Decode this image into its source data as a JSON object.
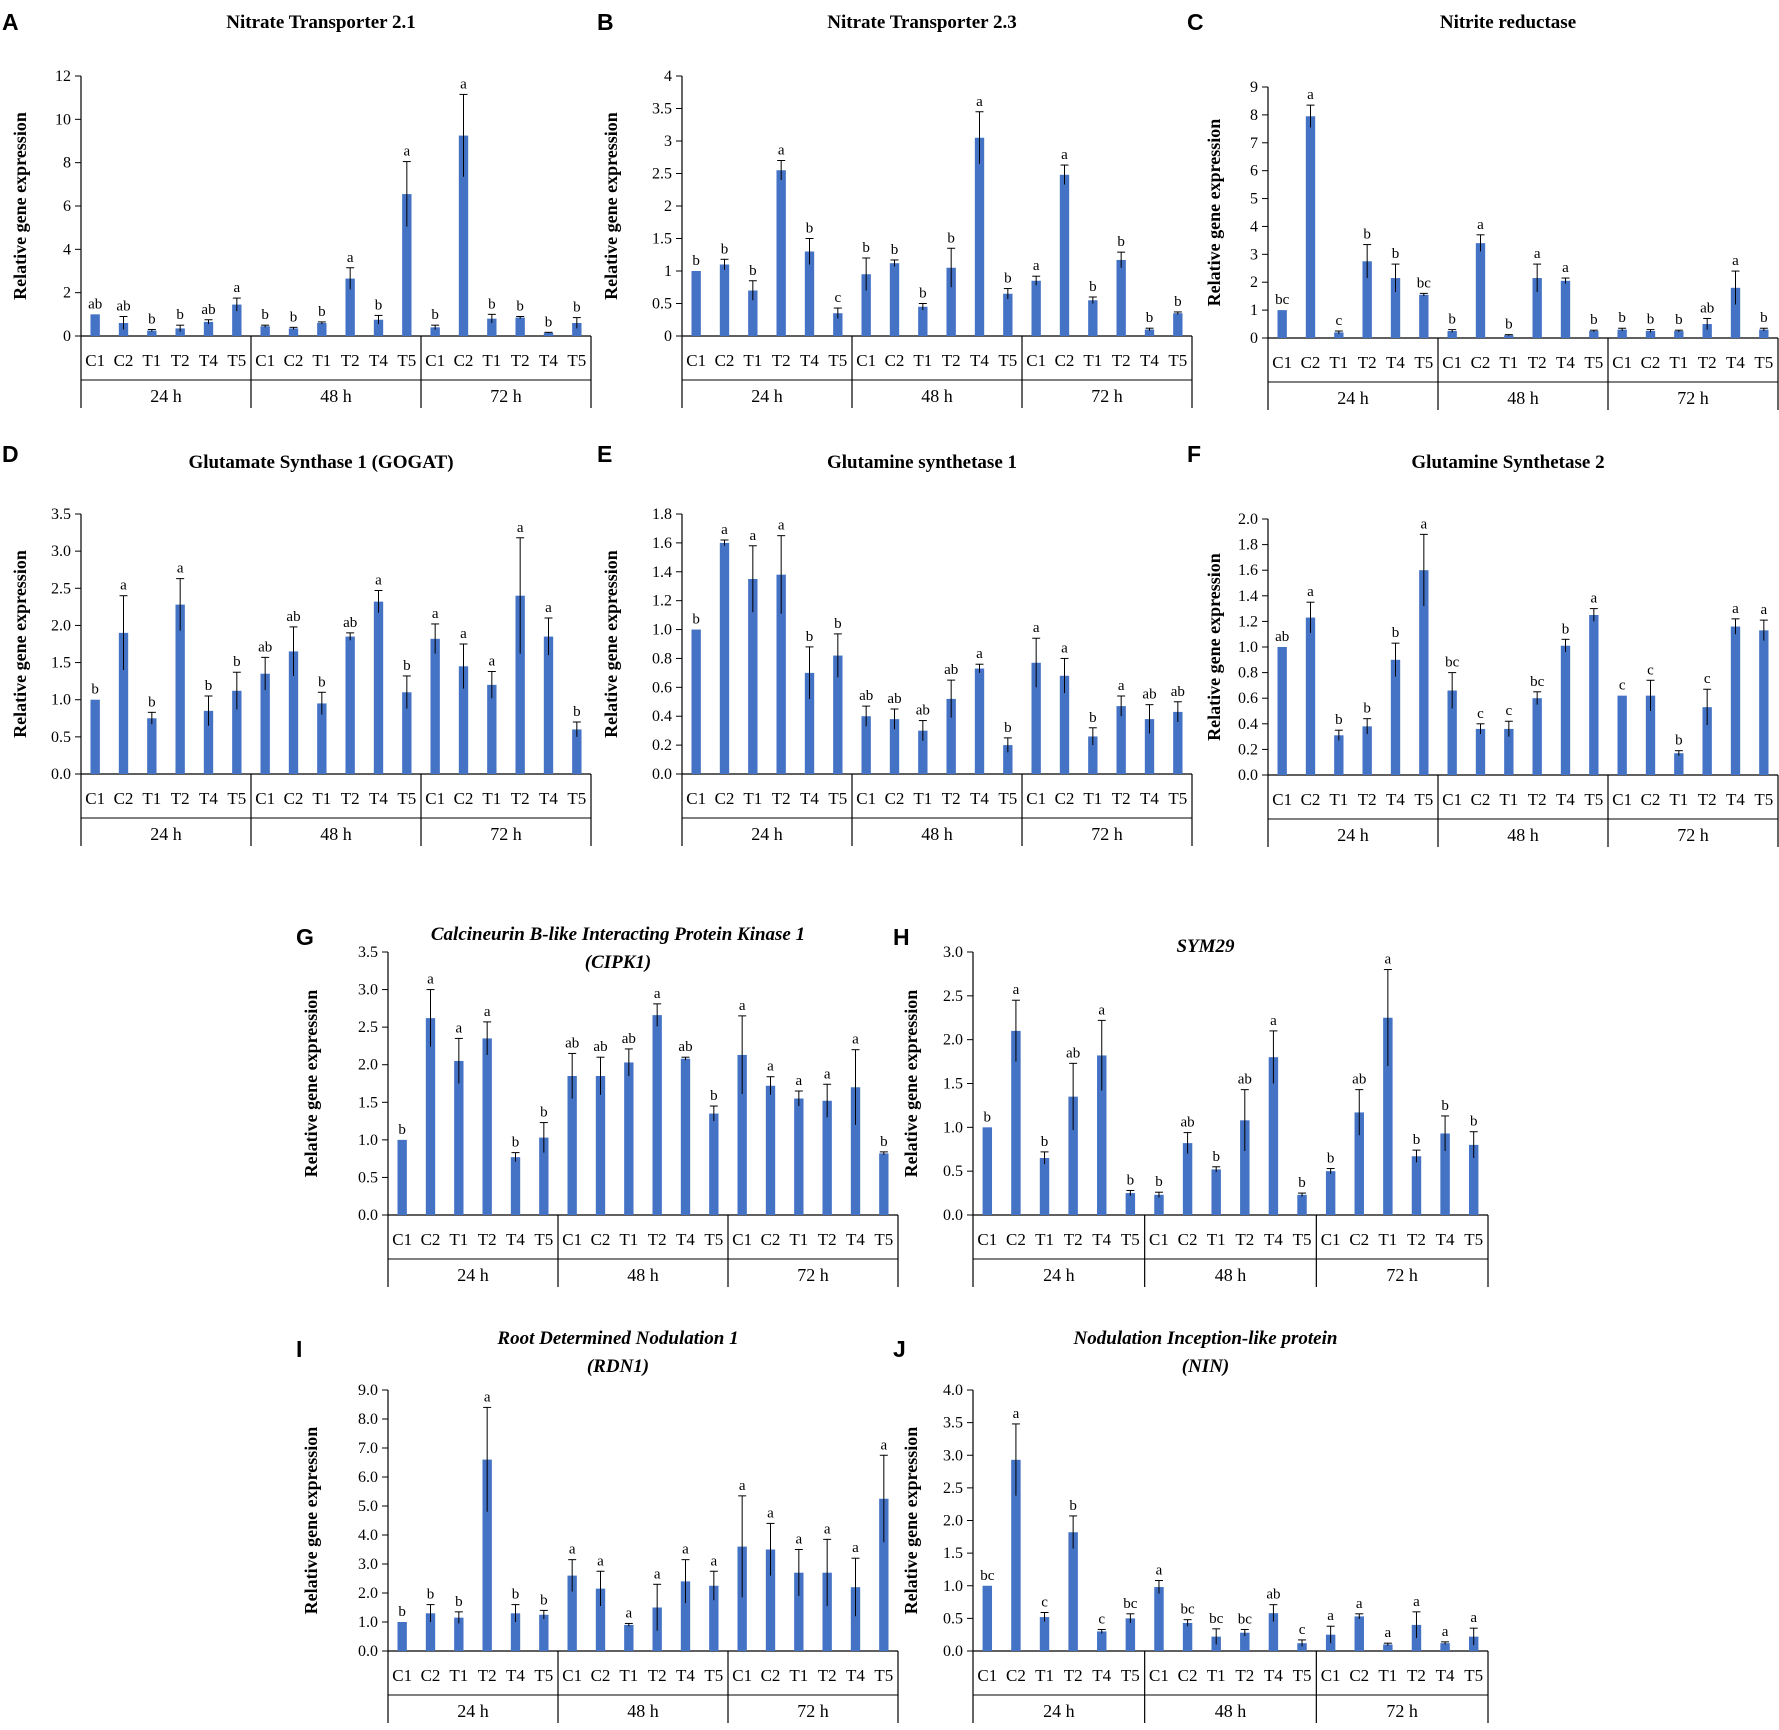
{
  "colors": {
    "bar": "#4472C4",
    "axis": "#000000"
  },
  "chart_data": [
    {
      "panel": "A",
      "type": "bar",
      "title": "Nitrate Transporter 2.1",
      "title_italic": false,
      "ylabel": "Relative gene expression",
      "ylim": [
        0,
        12
      ],
      "yticks": [
        "0",
        "2",
        "4",
        "6",
        "8",
        "10",
        "12"
      ],
      "groups": [
        "24 h",
        "48 h",
        "72 h"
      ],
      "categories": [
        "C1",
        "C2",
        "T1",
        "T2",
        "T4",
        "T5",
        "C1",
        "C2",
        "T1",
        "T2",
        "T4",
        "T5",
        "C1",
        "C2",
        "T1",
        "T2",
        "T4",
        "T5"
      ],
      "values": [
        1.0,
        0.6,
        0.25,
        0.35,
        0.65,
        1.45,
        0.45,
        0.35,
        0.6,
        2.65,
        0.75,
        6.55,
        0.4,
        9.25,
        0.8,
        0.85,
        0.15,
        0.6
      ],
      "errors": [
        0.0,
        0.3,
        0.05,
        0.15,
        0.1,
        0.3,
        0.05,
        0.05,
        0.05,
        0.5,
        0.2,
        1.5,
        0.1,
        1.9,
        0.2,
        0.05,
        0.02,
        0.25
      ],
      "labels": [
        "ab",
        "ab",
        "b",
        "b",
        "ab",
        "a",
        "b",
        "b",
        "b",
        "a",
        "b",
        "a",
        "b",
        "a",
        "b",
        "b",
        "b",
        "b"
      ]
    },
    {
      "panel": "B",
      "type": "bar",
      "title": "Nitrate Transporter 2.3",
      "title_italic": false,
      "ylabel": "Relative gene expression",
      "ylim": [
        0,
        4
      ],
      "yticks": [
        "0",
        "0.5",
        "1",
        "1.5",
        "2",
        "2.5",
        "3",
        "3.5",
        "4"
      ],
      "groups": [
        "24 h",
        "48 h",
        "72 h"
      ],
      "categories": [
        "C1",
        "C2",
        "T1",
        "T2",
        "T4",
        "T5",
        "C1",
        "C2",
        "T1",
        "T2",
        "T4",
        "T5",
        "C1",
        "C2",
        "T1",
        "T2",
        "T4",
        "T5"
      ],
      "values": [
        1.0,
        1.1,
        0.7,
        2.55,
        1.3,
        0.35,
        0.95,
        1.12,
        0.45,
        1.05,
        3.05,
        0.65,
        0.85,
        2.48,
        0.55,
        1.17,
        0.1,
        0.35
      ],
      "errors": [
        0.0,
        0.08,
        0.15,
        0.15,
        0.2,
        0.08,
        0.25,
        0.05,
        0.05,
        0.3,
        0.4,
        0.08,
        0.07,
        0.15,
        0.05,
        0.12,
        0.02,
        0.02
      ],
      "labels": [
        "b",
        "b",
        "b",
        "a",
        "b",
        "c",
        "b",
        "b",
        "b",
        "b",
        "a",
        "b",
        "a",
        "a",
        "b",
        "b",
        "b",
        "b"
      ]
    },
    {
      "panel": "C",
      "type": "bar",
      "title": "Nitrite reductase",
      "title_italic": false,
      "ylabel": "Relative gene expression",
      "ylim": [
        0,
        9
      ],
      "yticks": [
        "0",
        "1",
        "2",
        "3",
        "4",
        "5",
        "6",
        "7",
        "8",
        "9"
      ],
      "groups": [
        "24 h",
        "48 h",
        "72 h"
      ],
      "categories": [
        "C1",
        "C2",
        "T1",
        "T2",
        "T4",
        "T5",
        "C1",
        "C2",
        "T1",
        "T2",
        "T4",
        "T5",
        "C1",
        "C2",
        "T1",
        "T2",
        "T4",
        "T5"
      ],
      "values": [
        1.0,
        7.95,
        0.2,
        2.75,
        2.15,
        1.55,
        0.25,
        3.4,
        0.1,
        2.15,
        2.05,
        0.25,
        0.3,
        0.25,
        0.25,
        0.5,
        1.8,
        0.3
      ],
      "errors": [
        0.0,
        0.4,
        0.05,
        0.6,
        0.5,
        0.05,
        0.05,
        0.3,
        0.02,
        0.5,
        0.1,
        0.03,
        0.05,
        0.05,
        0.03,
        0.2,
        0.6,
        0.05
      ],
      "labels": [
        "bc",
        "a",
        "c",
        "b",
        "b",
        "bc",
        "b",
        "a",
        "b",
        "a",
        "a",
        "b",
        "b",
        "b",
        "b",
        "ab",
        "a",
        "b"
      ]
    },
    {
      "panel": "D",
      "type": "bar",
      "title": "Glutamate Synthase 1 (GOGAT)",
      "title_italic": false,
      "ylabel": "Relative gene expression",
      "ylim": [
        0,
        3.5
      ],
      "yticks": [
        "0.0",
        "0.5",
        "1.0",
        "1.5",
        "2.0",
        "2.5",
        "3.0",
        "3.5"
      ],
      "groups": [
        "24 h",
        "48 h",
        "72 h"
      ],
      "categories": [
        "C1",
        "C2",
        "T1",
        "T2",
        "T4",
        "T5",
        "C1",
        "C2",
        "T1",
        "T2",
        "T4",
        "T5",
        "C1",
        "C2",
        "T1",
        "T2",
        "T4",
        "T5"
      ],
      "values": [
        1.0,
        1.9,
        0.75,
        2.28,
        0.85,
        1.12,
        1.35,
        1.65,
        0.95,
        1.85,
        2.32,
        1.1,
        1.82,
        1.45,
        1.2,
        2.4,
        1.85,
        0.6
      ],
      "errors": [
        0.0,
        0.5,
        0.08,
        0.35,
        0.2,
        0.25,
        0.22,
        0.33,
        0.15,
        0.05,
        0.15,
        0.22,
        0.2,
        0.3,
        0.18,
        0.78,
        0.25,
        0.1
      ],
      "labels": [
        "b",
        "a",
        "b",
        "a",
        "b",
        "b",
        "ab",
        "ab",
        "b",
        "ab",
        "a",
        "b",
        "a",
        "a",
        "a",
        "a",
        "a",
        "b"
      ]
    },
    {
      "panel": "E",
      "type": "bar",
      "title": "Glutamine synthetase 1",
      "title_italic": false,
      "ylabel": "Relative gene expression",
      "ylim": [
        0,
        1.8
      ],
      "yticks": [
        "0.0",
        "0.2",
        "0.4",
        "0.6",
        "0.8",
        "1.0",
        "1.2",
        "1.4",
        "1.6",
        "1.8"
      ],
      "groups": [
        "24 h",
        "48 h",
        "72 h"
      ],
      "categories": [
        "C1",
        "C2",
        "T1",
        "T2",
        "T4",
        "T5",
        "C1",
        "C2",
        "T1",
        "T2",
        "T4",
        "T5",
        "C1",
        "C2",
        "T1",
        "T2",
        "T4",
        "T5"
      ],
      "values": [
        1.0,
        1.6,
        1.35,
        1.38,
        0.7,
        0.82,
        0.4,
        0.38,
        0.3,
        0.52,
        0.73,
        0.2,
        0.77,
        0.68,
        0.26,
        0.47,
        0.38,
        0.43
      ],
      "errors": [
        0.0,
        0.02,
        0.23,
        0.27,
        0.18,
        0.15,
        0.07,
        0.07,
        0.07,
        0.13,
        0.03,
        0.05,
        0.17,
        0.12,
        0.06,
        0.07,
        0.1,
        0.07
      ],
      "labels": [
        "b",
        "a",
        "a",
        "a",
        "b",
        "b",
        "ab",
        "ab",
        "ab",
        "ab",
        "a",
        "b",
        "a",
        "a",
        "b",
        "a",
        "ab",
        "ab"
      ]
    },
    {
      "panel": "F",
      "type": "bar",
      "title": "Glutamine Synthetase 2",
      "title_italic": false,
      "ylabel": "Relative gene expression",
      "ylim": [
        0,
        2.0
      ],
      "yticks": [
        "0.0",
        "0.2",
        "0.4",
        "0.6",
        "0.8",
        "1.0",
        "1.2",
        "1.4",
        "1.6",
        "1.8",
        "2.0"
      ],
      "groups": [
        "24 h",
        "48 h",
        "72 h"
      ],
      "categories": [
        "C1",
        "C2",
        "T1",
        "T2",
        "T4",
        "T5",
        "C1",
        "C2",
        "T1",
        "T2",
        "T4",
        "T5",
        "C1",
        "C2",
        "T1",
        "T2",
        "T4",
        "T5"
      ],
      "values": [
        1.0,
        1.23,
        0.31,
        0.38,
        0.9,
        1.6,
        0.66,
        0.36,
        0.36,
        0.6,
        1.01,
        1.25,
        0.62,
        0.62,
        0.17,
        0.53,
        1.16,
        1.13
      ],
      "errors": [
        0.0,
        0.12,
        0.04,
        0.06,
        0.13,
        0.28,
        0.14,
        0.04,
        0.06,
        0.05,
        0.05,
        0.05,
        0.0,
        0.12,
        0.02,
        0.14,
        0.06,
        0.08
      ],
      "labels": [
        "ab",
        "a",
        "b",
        "b",
        "b",
        "a",
        "bc",
        "c",
        "c",
        "bc",
        "b",
        "a",
        "c",
        "c",
        "b",
        "c",
        "a",
        "a"
      ]
    },
    {
      "panel": "G",
      "type": "bar",
      "title": "Calcineurin B-like Interacting Protein Kinase 1",
      "title2": "(CIPK1)",
      "title_italic": true,
      "ylabel": "Relative gene expression",
      "ylim": [
        0,
        3.5
      ],
      "yticks": [
        "0.0",
        "0.5",
        "1.0",
        "1.5",
        "2.0",
        "2.5",
        "3.0",
        "3.5"
      ],
      "groups": [
        "24 h",
        "48 h",
        "72 h"
      ],
      "categories": [
        "C1",
        "C2",
        "T1",
        "T2",
        "T4",
        "T5",
        "C1",
        "C2",
        "T1",
        "T2",
        "T4",
        "T5",
        "C1",
        "C2",
        "T1",
        "T2",
        "T4",
        "T5"
      ],
      "values": [
        1.0,
        2.62,
        2.05,
        2.35,
        0.77,
        1.03,
        1.85,
        1.85,
        2.03,
        2.66,
        2.08,
        1.35,
        2.13,
        1.72,
        1.55,
        1.52,
        1.7,
        0.82
      ],
      "errors": [
        0.0,
        0.38,
        0.3,
        0.22,
        0.06,
        0.2,
        0.3,
        0.25,
        0.18,
        0.15,
        0.02,
        0.1,
        0.52,
        0.12,
        0.1,
        0.22,
        0.5,
        0.02
      ],
      "labels": [
        "b",
        "a",
        "a",
        "a",
        "b",
        "b",
        "ab",
        "ab",
        "ab",
        "a",
        "ab",
        "b",
        "a",
        "a",
        "a",
        "a",
        "a",
        "b"
      ]
    },
    {
      "panel": "H",
      "type": "bar",
      "title": "SYM29",
      "title_italic": true,
      "ylabel": "Relative gene expression",
      "ylim": [
        0,
        3.0
      ],
      "yticks": [
        "0.0",
        "0.5",
        "1.0",
        "1.5",
        "2.0",
        "2.5",
        "3.0"
      ],
      "groups": [
        "24 h",
        "48 h",
        "72 h"
      ],
      "categories": [
        "C1",
        "C2",
        "T1",
        "T2",
        "T4",
        "T5",
        "C1",
        "C2",
        "T1",
        "T2",
        "T4",
        "T5",
        "C1",
        "C2",
        "T1",
        "T2",
        "T4",
        "T5"
      ],
      "values": [
        1.0,
        2.1,
        0.65,
        1.35,
        1.82,
        0.25,
        0.23,
        0.82,
        0.52,
        1.08,
        1.8,
        0.23,
        0.5,
        1.17,
        2.25,
        0.67,
        0.93,
        0.8
      ],
      "errors": [
        0.0,
        0.35,
        0.07,
        0.38,
        0.4,
        0.03,
        0.03,
        0.12,
        0.03,
        0.35,
        0.3,
        0.02,
        0.03,
        0.26,
        0.55,
        0.07,
        0.2,
        0.15
      ],
      "labels": [
        "b",
        "a",
        "b",
        "ab",
        "a",
        "b",
        "b",
        "ab",
        "b",
        "ab",
        "a",
        "b",
        "b",
        "ab",
        "a",
        "b",
        "b",
        "b"
      ]
    },
    {
      "panel": "I",
      "type": "bar",
      "title": "Root Determined Nodulation 1",
      "title2": "(RDN1)",
      "title_italic": true,
      "ylabel": "Relative gene expression",
      "ylim": [
        0,
        9.0
      ],
      "yticks": [
        "0.0",
        "1.0",
        "2.0",
        "3.0",
        "4.0",
        "5.0",
        "6.0",
        "7.0",
        "8.0",
        "9.0"
      ],
      "groups": [
        "24 h",
        "48 h",
        "72 h"
      ],
      "categories": [
        "C1",
        "C2",
        "T1",
        "T2",
        "T4",
        "T5",
        "C1",
        "C2",
        "T1",
        "T2",
        "T4",
        "T5",
        "C1",
        "C2",
        "T1",
        "T2",
        "T4",
        "T5"
      ],
      "values": [
        1.0,
        1.3,
        1.15,
        6.6,
        1.3,
        1.25,
        2.6,
        2.15,
        0.9,
        1.5,
        2.4,
        2.25,
        3.6,
        3.5,
        2.7,
        2.7,
        2.2,
        5.25
      ],
      "errors": [
        0.0,
        0.3,
        0.2,
        1.8,
        0.3,
        0.15,
        0.55,
        0.6,
        0.05,
        0.8,
        0.75,
        0.5,
        1.75,
        0.9,
        0.8,
        1.15,
        1.0,
        1.5
      ],
      "labels": [
        "b",
        "b",
        "b",
        "a",
        "b",
        "b",
        "a",
        "a",
        "a",
        "a",
        "a",
        "a",
        "a",
        "a",
        "a",
        "a",
        "a",
        "a"
      ]
    },
    {
      "panel": "J",
      "type": "bar",
      "title": "Nodulation Inception-like protein",
      "title2": "(NIN)",
      "title_italic": true,
      "ylabel": "Relative gene expression",
      "ylim": [
        0,
        4.0
      ],
      "yticks": [
        "0.0",
        "0.5",
        "1.0",
        "1.5",
        "2.0",
        "2.5",
        "3.0",
        "3.5",
        "4.0"
      ],
      "groups": [
        "24 h",
        "48 h",
        "72 h"
      ],
      "categories": [
        "C1",
        "C2",
        "T1",
        "T2",
        "T4",
        "T5",
        "C1",
        "C2",
        "T1",
        "T2",
        "T4",
        "T5",
        "C1",
        "C2",
        "T1",
        "T2",
        "T4",
        "T5"
      ],
      "values": [
        1.0,
        2.93,
        0.52,
        1.82,
        0.3,
        0.5,
        0.98,
        0.43,
        0.22,
        0.28,
        0.58,
        0.12,
        0.25,
        0.53,
        0.1,
        0.4,
        0.12,
        0.22
      ],
      "errors": [
        0.0,
        0.55,
        0.07,
        0.25,
        0.03,
        0.07,
        0.1,
        0.05,
        0.12,
        0.05,
        0.13,
        0.05,
        0.13,
        0.04,
        0.02,
        0.2,
        0.02,
        0.13
      ],
      "labels": [
        "bc",
        "a",
        "c",
        "b",
        "c",
        "bc",
        "a",
        "bc",
        "bc",
        "bc",
        "ab",
        "c",
        "a",
        "a",
        "a",
        "a",
        "a",
        "a"
      ]
    }
  ]
}
